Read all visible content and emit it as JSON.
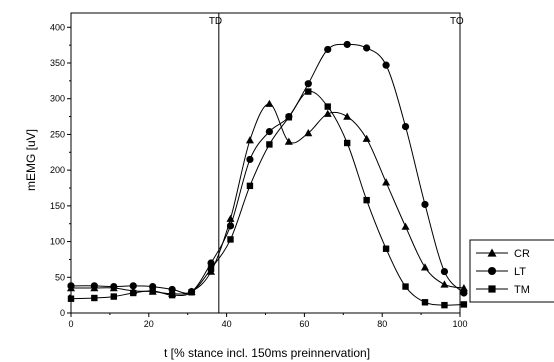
{
  "chart_data": {
    "type": "line",
    "xlabel": "t [% stance incl. 150ms preinnervation]",
    "ylabel": "mEMG [uV]",
    "xlim": [
      0,
      100
    ],
    "ylim": [
      0,
      420
    ],
    "xticks": [
      0,
      20,
      40,
      60,
      80,
      100
    ],
    "yticks": [
      0,
      50,
      100,
      150,
      200,
      250,
      300,
      350,
      400
    ],
    "grid": false,
    "legend_position": "bottom-right",
    "annotations": [
      {
        "label": "TD",
        "x": 38
      },
      {
        "label": "TO",
        "x": 100
      }
    ],
    "series": [
      {
        "name": "CR",
        "marker": "triangle",
        "x": [
          0,
          6,
          11,
          16,
          21,
          26,
          31,
          36,
          41,
          46,
          51,
          56,
          61,
          66,
          71,
          76,
          81,
          86,
          91,
          96,
          101
        ],
        "y": [
          35,
          35,
          35,
          31,
          30,
          27,
          30,
          58,
          132,
          242,
          293,
          240,
          252,
          279,
          275,
          244,
          183,
          121,
          64,
          40,
          35
        ]
      },
      {
        "name": "LT",
        "marker": "circle",
        "x": [
          0,
          6,
          11,
          16,
          21,
          26,
          31,
          36,
          41,
          46,
          51,
          56,
          61,
          66,
          71,
          76,
          81,
          86,
          91,
          96,
          101
        ],
        "y": [
          38,
          38,
          37,
          38,
          37,
          33,
          30,
          70,
          122,
          215,
          254,
          275,
          321,
          369,
          376,
          371,
          347,
          261,
          152,
          58,
          28
        ]
      },
      {
        "name": "TM",
        "marker": "square",
        "x": [
          0,
          6,
          11,
          16,
          21,
          26,
          31,
          36,
          41,
          46,
          51,
          56,
          61,
          66,
          71,
          76,
          81,
          86,
          91,
          96,
          101
        ],
        "y": [
          20,
          21,
          23,
          28,
          31,
          25,
          29,
          62,
          103,
          178,
          236,
          274,
          310,
          289,
          238,
          158,
          90,
          37,
          15,
          11,
          12
        ]
      }
    ]
  }
}
